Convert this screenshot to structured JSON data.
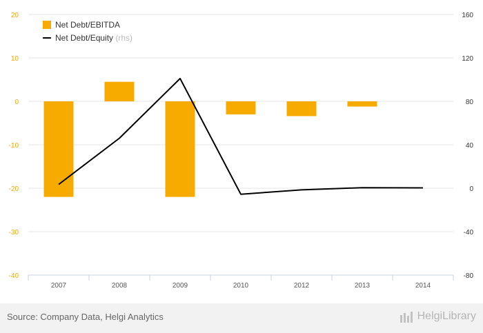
{
  "chart_data": {
    "type": "bar",
    "categories": [
      "2007",
      "2008",
      "2009",
      "2010",
      "2012",
      "2013",
      "2014"
    ],
    "series": [
      {
        "name": "Net Debt/EBITDA",
        "kind": "bar",
        "axis": "left",
        "color": "#f7ab00",
        "values": [
          -22,
          4.5,
          -22,
          -3,
          -3.4,
          -1.2,
          null
        ]
      },
      {
        "name": "Net Debt/Equity",
        "legend_suffix": "(rhs)",
        "kind": "line",
        "axis": "right",
        "color": "#000000",
        "values": [
          3.5,
          46,
          101,
          -5.5,
          -1.5,
          0.5,
          0.3
        ]
      }
    ],
    "y_left": {
      "ticks": [
        20,
        10,
        0,
        -10,
        -20,
        -30,
        -40
      ],
      "ylim": [
        -40,
        20
      ]
    },
    "y_right": {
      "ticks": [
        160,
        120,
        80,
        40,
        0,
        -40,
        -80
      ],
      "ylim": [
        -80,
        160
      ]
    },
    "grid": true,
    "legend_position": "top-left"
  },
  "footer": {
    "source": "Source: Company Data, Helgi Analytics",
    "brand": "HelgiLibrary"
  }
}
